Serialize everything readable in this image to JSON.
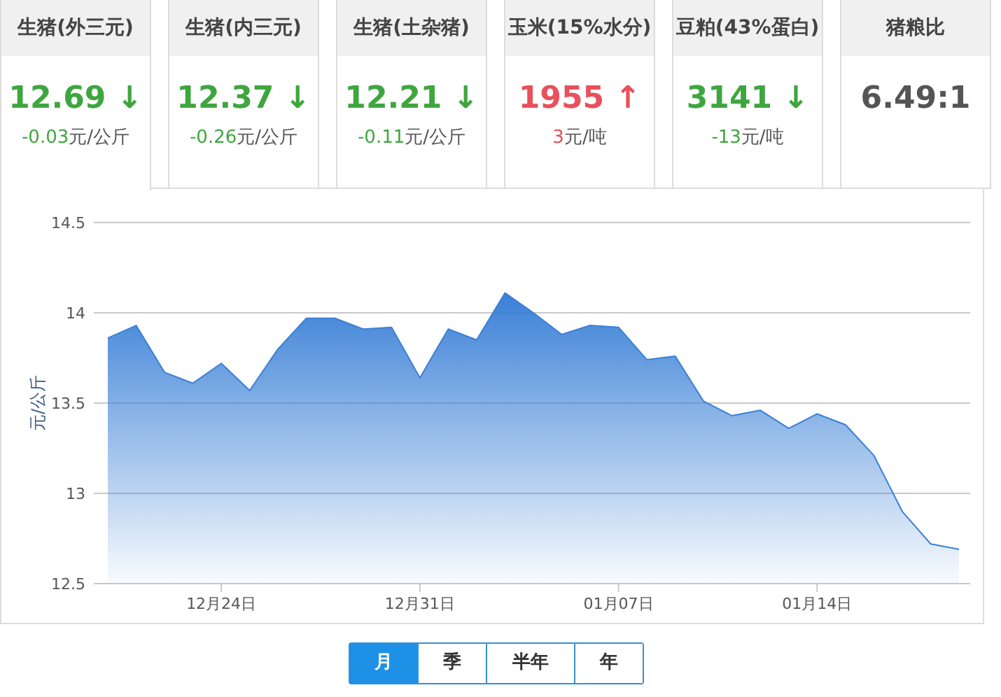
{
  "chart_data": [
    {
      "type": "other",
      "title": "生猪(外三元)",
      "annotations": [
        "12.69 ↓",
        "-0.03",
        "元/公斤"
      ],
      "colors": [
        "#3fa63f",
        "#3fa63f",
        "#555555"
      ]
    },
    {
      "type": "other",
      "title": "生猪(内三元)",
      "annotations": [
        "12.37 ↓",
        "-0.26",
        "元/公斤"
      ],
      "colors": [
        "#3fa63f",
        "#3fa63f",
        "#555555"
      ]
    },
    {
      "type": "other",
      "title": "生猪(土杂猪)",
      "annotations": [
        "12.21 ↓",
        "-0.11",
        "元/公斤"
      ],
      "colors": [
        "#3fa63f",
        "#3fa63f",
        "#555555"
      ]
    },
    {
      "type": "other",
      "title": "玉米(15%水分)",
      "annotations": [
        "1955 ↑",
        "3",
        "元/吨"
      ],
      "colors": [
        "#e8505b",
        "#e8505b",
        "#555555"
      ]
    },
    {
      "type": "other",
      "title": "豆粕(43%蛋白)",
      "annotations": [
        "3141 ↓",
        "-13",
        "元/吨"
      ],
      "colors": [
        "#3fa63f",
        "#3fa63f",
        "#555555"
      ]
    },
    {
      "type": "other",
      "title": "猪粮比",
      "annotations": [
        "6.49:1"
      ],
      "colors": [
        "#555555"
      ]
    },
    {
      "type": "area",
      "ylabel": "元/公斤",
      "color": "#3a80d6",
      "grid": "y",
      "marker": "none",
      "categories": [
        null,
        null,
        null,
        null,
        "12月24日",
        null,
        null,
        null,
        null,
        null,
        null,
        "12月31日",
        null,
        null,
        null,
        null,
        null,
        null,
        "01月07日",
        null,
        null,
        null,
        null,
        null,
        null,
        "01月14日",
        null,
        null,
        null,
        null,
        null
      ],
      "values": [
        13.86,
        13.93,
        13.67,
        13.61,
        13.72,
        13.57,
        13.8,
        13.97,
        13.97,
        13.91,
        13.92,
        13.64,
        13.91,
        13.85,
        14.11,
        14.0,
        13.88,
        13.93,
        13.92,
        13.74,
        13.76,
        13.51,
        13.43,
        13.46,
        13.36,
        13.44,
        13.38,
        13.21,
        12.9,
        12.72,
        12.69
      ],
      "ylim": [
        12.5,
        14.5
      ],
      "yticks": [
        12.5,
        13,
        13.5,
        14,
        14.5
      ]
    },
    {
      "type": "other",
      "categories": [
        "月",
        "季",
        "半年",
        "年"
      ],
      "colors": [
        "#1e90e6",
        "#ffffff",
        "#ffffff",
        "#ffffff"
      ]
    }
  ]
}
